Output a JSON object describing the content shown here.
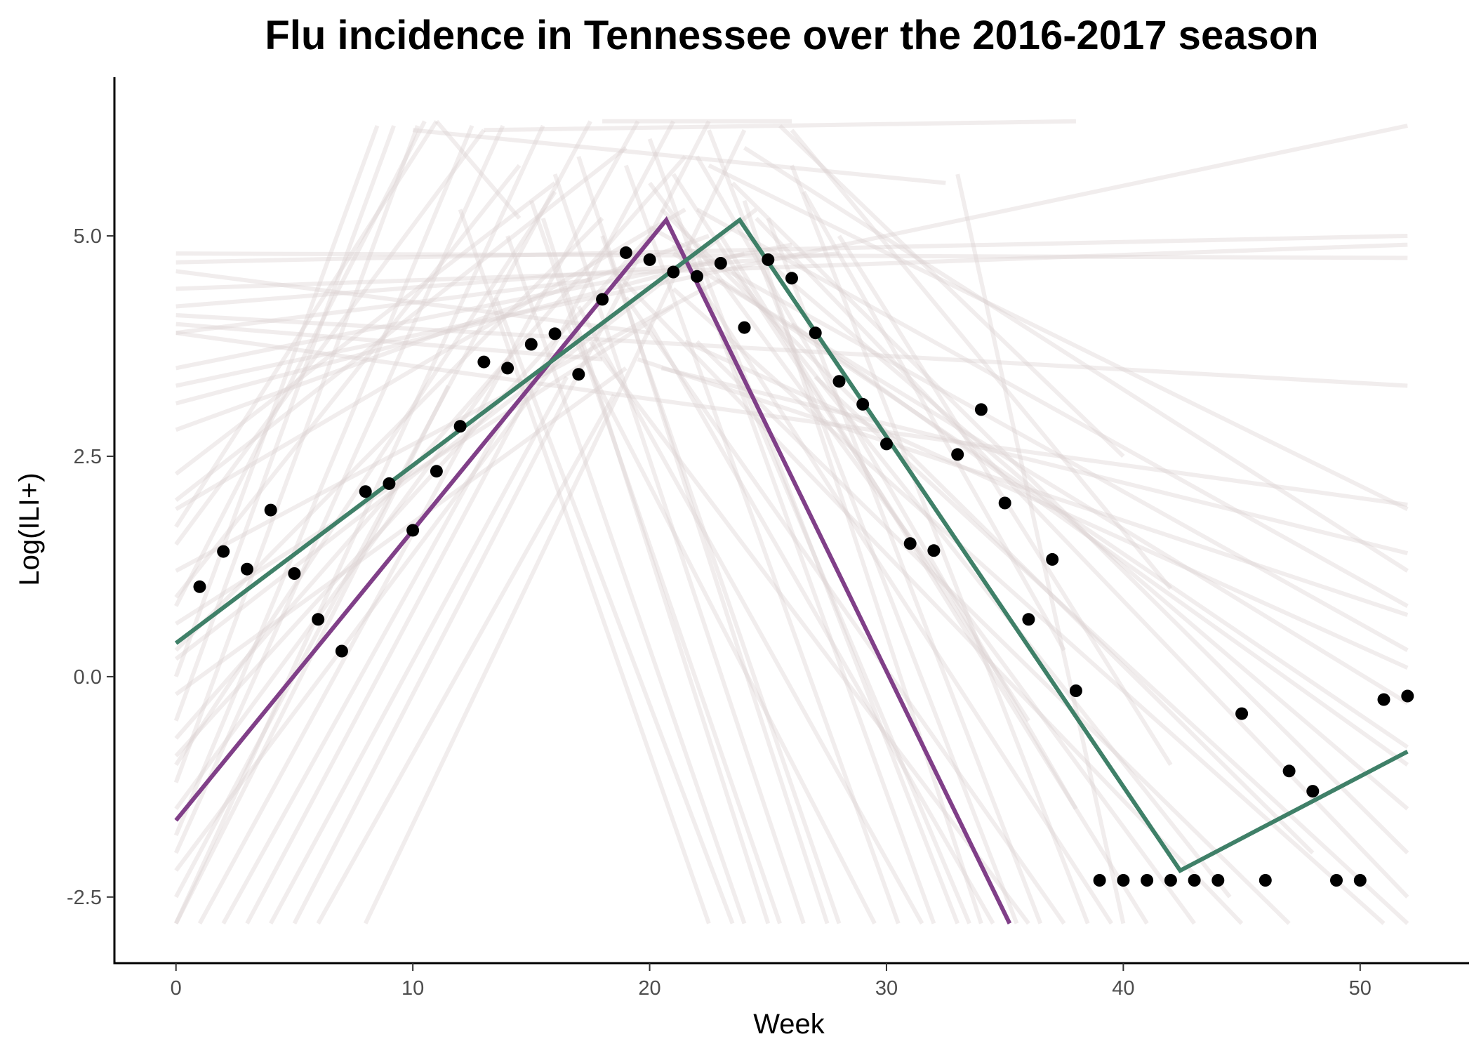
{
  "chart_data": {
    "type": "line",
    "title": "Flu incidence in Tennessee over the 2016-2017 season",
    "xlabel": "Week",
    "ylabel": "Log(ILI+)",
    "xlim": [
      -2.6,
      54.6
    ],
    "ylim": [
      -3.25,
      6.8
    ],
    "x_ticks": [
      0,
      10,
      20,
      30,
      40,
      50
    ],
    "y_ticks": [
      -2.5,
      0.0,
      2.5,
      5.0
    ],
    "x_tick_labels": [
      "0",
      "10",
      "20",
      "30",
      "40",
      "50"
    ],
    "y_tick_labels": [
      "-2.5",
      "0.0",
      "2.5",
      "5.0"
    ],
    "grid": false,
    "colors": {
      "observed": "#000000",
      "fit_purple": "#803f88",
      "fit_green": "#3f8068",
      "samples": "#d9d0d0"
    },
    "observed_points": [
      {
        "x": 1,
        "y": 1.02
      },
      {
        "x": 2,
        "y": 1.42
      },
      {
        "x": 3,
        "y": 1.22
      },
      {
        "x": 4,
        "y": 1.89
      },
      {
        "x": 5,
        "y": 1.17
      },
      {
        "x": 6,
        "y": 0.65
      },
      {
        "x": 7,
        "y": 0.29
      },
      {
        "x": 8,
        "y": 2.1
      },
      {
        "x": 9,
        "y": 2.19
      },
      {
        "x": 10,
        "y": 1.66
      },
      {
        "x": 11,
        "y": 2.33
      },
      {
        "x": 12,
        "y": 2.84
      },
      {
        "x": 13,
        "y": 3.57
      },
      {
        "x": 14,
        "y": 3.5
      },
      {
        "x": 15,
        "y": 3.77
      },
      {
        "x": 16,
        "y": 3.89
      },
      {
        "x": 17,
        "y": 3.43
      },
      {
        "x": 18,
        "y": 4.28
      },
      {
        "x": 19,
        "y": 4.81
      },
      {
        "x": 20,
        "y": 4.73
      },
      {
        "x": 21,
        "y": 4.59
      },
      {
        "x": 22,
        "y": 4.54
      },
      {
        "x": 23,
        "y": 4.69
      },
      {
        "x": 24,
        "y": 3.96
      },
      {
        "x": 25,
        "y": 4.73
      },
      {
        "x": 26,
        "y": 4.52
      },
      {
        "x": 27,
        "y": 3.9
      },
      {
        "x": 28,
        "y": 3.35
      },
      {
        "x": 29,
        "y": 3.09
      },
      {
        "x": 30,
        "y": 2.64
      },
      {
        "x": 31,
        "y": 1.51
      },
      {
        "x": 32,
        "y": 1.43
      },
      {
        "x": 33,
        "y": 2.52
      },
      {
        "x": 34,
        "y": 3.03
      },
      {
        "x": 35,
        "y": 1.97
      },
      {
        "x": 36,
        "y": 0.65
      },
      {
        "x": 37,
        "y": 1.33
      },
      {
        "x": 38,
        "y": -0.16
      },
      {
        "x": 39,
        "y": -2.31
      },
      {
        "x": 40,
        "y": -2.31
      },
      {
        "x": 41,
        "y": -2.31
      },
      {
        "x": 42,
        "y": -2.31
      },
      {
        "x": 43,
        "y": -2.31
      },
      {
        "x": 44,
        "y": -2.31
      },
      {
        "x": 45,
        "y": -0.42
      },
      {
        "x": 46,
        "y": -2.31
      },
      {
        "x": 47,
        "y": -1.07
      },
      {
        "x": 48,
        "y": -1.3
      },
      {
        "x": 49,
        "y": -2.31
      },
      {
        "x": 50,
        "y": -2.31
      },
      {
        "x": 51,
        "y": -0.26
      },
      {
        "x": 52,
        "y": -0.22
      }
    ],
    "fits": [
      {
        "color": "#803f88",
        "points": [
          [
            0,
            -1.63
          ],
          [
            20.7,
            5.18
          ],
          [
            35.2,
            -2.8
          ]
        ]
      },
      {
        "color": "#3f8068",
        "points": [
          [
            0,
            0.38
          ],
          [
            23.8,
            5.18
          ],
          [
            42.4,
            -2.2
          ],
          [
            52,
            -0.85
          ]
        ]
      }
    ],
    "sample_lines": [
      [
        [
          0,
          0.0
        ],
        [
          8.5,
          6.25
        ]
      ],
      [
        [
          0,
          -0.5
        ],
        [
          9.2,
          6.25
        ]
      ],
      [
        [
          0,
          0.8
        ],
        [
          10.5,
          6.3
        ]
      ],
      [
        [
          0,
          -1.2
        ],
        [
          10.2,
          6.25
        ]
      ],
      [
        [
          0,
          -1.8
        ],
        [
          12.5,
          6.25
        ]
      ],
      [
        [
          0,
          -2.0
        ],
        [
          13.8,
          6.25
        ]
      ],
      [
        [
          0,
          -2.8
        ],
        [
          15.5,
          6.25
        ]
      ],
      [
        [
          0,
          -2.5
        ],
        [
          17.5,
          6.3
        ]
      ],
      [
        [
          0,
          1.5
        ],
        [
          13.0,
          6.2
        ]
      ],
      [
        [
          1,
          -2.8
        ],
        [
          19.5,
          6.3
        ]
      ],
      [
        [
          3,
          -2.8
        ],
        [
          21.0,
          6.3
        ]
      ],
      [
        [
          5,
          -2.8
        ],
        [
          22.5,
          6.3
        ]
      ],
      [
        [
          8,
          -2.8
        ],
        [
          24.0,
          6.2
        ]
      ],
      [
        [
          0,
          2.3
        ],
        [
          16.0,
          5.6
        ]
      ],
      [
        [
          0,
          0.3
        ],
        [
          18.0,
          5.2
        ]
      ],
      [
        [
          0,
          -0.9
        ],
        [
          20.0,
          5.0
        ]
      ],
      [
        [
          0,
          1.9
        ],
        [
          21.5,
          5.3
        ]
      ],
      [
        [
          0,
          2.8
        ],
        [
          22.5,
          5.0
        ]
      ],
      [
        [
          0,
          3.1
        ],
        [
          24.0,
          4.8
        ]
      ],
      [
        [
          0,
          3.5
        ],
        [
          26.0,
          4.9
        ]
      ],
      [
        [
          0,
          4.2
        ],
        [
          28.0,
          4.8
        ]
      ],
      [
        [
          0,
          4.8
        ],
        [
          52,
          4.75
        ]
      ],
      [
        [
          0,
          4.7
        ],
        [
          52,
          5.0
        ]
      ],
      [
        [
          0,
          4.4
        ],
        [
          52,
          4.9
        ]
      ],
      [
        [
          0,
          4.1
        ],
        [
          52,
          3.3
        ]
      ],
      [
        [
          0,
          3.9
        ],
        [
          52,
          1.95
        ]
      ],
      [
        [
          0,
          3.3
        ],
        [
          52,
          6.25
        ]
      ],
      [
        [
          22.5,
          5.8
        ],
        [
          52,
          1.9
        ]
      ],
      [
        [
          24.0,
          6.0
        ],
        [
          52,
          1.2
        ]
      ],
      [
        [
          22.0,
          5.3
        ],
        [
          52,
          0.8
        ]
      ],
      [
        [
          20.0,
          5.1
        ],
        [
          52,
          0.3
        ]
      ],
      [
        [
          21.0,
          4.8
        ],
        [
          52,
          -0.3
        ]
      ],
      [
        [
          23.0,
          4.5
        ],
        [
          52,
          -0.8
        ]
      ],
      [
        [
          25.0,
          4.7
        ],
        [
          52,
          -1.5
        ]
      ],
      [
        [
          23.5,
          5.6
        ],
        [
          52,
          -2.0
        ]
      ],
      [
        [
          24.5,
          5.2
        ],
        [
          52,
          -2.5
        ]
      ],
      [
        [
          21.0,
          4.4
        ],
        [
          51,
          -2.8
        ]
      ],
      [
        [
          22.0,
          3.8
        ],
        [
          47,
          -2.8
        ]
      ],
      [
        [
          18.5,
          4.6
        ],
        [
          45,
          -2.8
        ]
      ],
      [
        [
          20.0,
          5.6
        ],
        [
          43,
          -2.8
        ]
      ],
      [
        [
          23.0,
          5.0
        ],
        [
          41,
          -2.8
        ]
      ],
      [
        [
          21.0,
          4.9
        ],
        [
          39.5,
          -2.8
        ]
      ],
      [
        [
          19.0,
          4.3
        ],
        [
          37.5,
          -2.8
        ]
      ],
      [
        [
          17.5,
          3.8
        ],
        [
          36.0,
          -2.8
        ]
      ],
      [
        [
          20.0,
          4.0
        ],
        [
          34.5,
          -2.8
        ]
      ],
      [
        [
          22.0,
          4.8
        ],
        [
          33.0,
          -2.8
        ]
      ],
      [
        [
          17.0,
          4.2
        ],
        [
          31.5,
          -2.8
        ]
      ],
      [
        [
          16.5,
          4.0
        ],
        [
          29.5,
          -2.8
        ]
      ],
      [
        [
          18.0,
          5.0
        ],
        [
          28.0,
          -2.8
        ]
      ],
      [
        [
          16.0,
          5.7
        ],
        [
          26.5,
          -2.8
        ]
      ],
      [
        [
          15.0,
          5.4
        ],
        [
          25.5,
          -2.8
        ]
      ],
      [
        [
          14.0,
          5.0
        ],
        [
          24.0,
          -2.8
        ]
      ],
      [
        [
          12.0,
          5.3
        ],
        [
          22.5,
          -2.8
        ]
      ],
      [
        [
          11.0,
          6.3
        ],
        [
          14.5,
          5.2
        ]
      ],
      [
        [
          10.0,
          6.2
        ],
        [
          32.5,
          5.6
        ]
      ],
      [
        [
          18.0,
          6.3
        ],
        [
          26.0,
          6.3
        ]
      ],
      [
        [
          13.0,
          6.2
        ],
        [
          38.0,
          6.3
        ]
      ],
      [
        [
          25.5,
          6.25
        ],
        [
          40.0,
          2.5
        ]
      ],
      [
        [
          26.0,
          6.2
        ],
        [
          42.0,
          1.0
        ]
      ],
      [
        [
          33.0,
          5.7
        ],
        [
          40.0,
          -2.8
        ]
      ],
      [
        [
          21.0,
          5.7
        ],
        [
          36.0,
          -0.5
        ]
      ],
      [
        [
          22.0,
          5.9
        ],
        [
          38.0,
          -1.5
        ]
      ],
      [
        [
          26.5,
          5.5
        ],
        [
          37.5,
          0.3
        ]
      ],
      [
        [
          28.0,
          5.0
        ],
        [
          42.0,
          -1.0
        ]
      ],
      [
        [
          20.5,
          5.3
        ],
        [
          48.0,
          -2.0
        ]
      ],
      [
        [
          23.5,
          4.6
        ],
        [
          44.5,
          -2.5
        ]
      ],
      [
        [
          21.5,
          3.8
        ],
        [
          52,
          0.1
        ]
      ],
      [
        [
          19.5,
          3.6
        ],
        [
          52,
          0.7
        ]
      ],
      [
        [
          20.5,
          3.5
        ],
        [
          52,
          1.4
        ]
      ],
      [
        [
          26.0,
          4.0
        ],
        [
          52,
          -1.0
        ]
      ],
      [
        [
          27.0,
          3.4
        ],
        [
          52,
          -2.8
        ]
      ],
      [
        [
          0,
          -1.5
        ],
        [
          14.0,
          3.6
        ]
      ],
      [
        [
          0,
          -2.2
        ],
        [
          17.0,
          3.9
        ]
      ],
      [
        [
          0,
          -0.2
        ],
        [
          19.0,
          3.5
        ]
      ],
      [
        [
          0,
          0.6
        ],
        [
          21.0,
          4.2
        ]
      ],
      [
        [
          0,
          1.2
        ],
        [
          23.0,
          4.5
        ]
      ],
      [
        [
          0,
          -2.8
        ],
        [
          11.5,
          3.3
        ]
      ],
      [
        [
          2,
          -2.8
        ],
        [
          14.0,
          3.0
        ]
      ],
      [
        [
          4,
          -2.8
        ],
        [
          16.5,
          3.4
        ]
      ],
      [
        [
          6,
          -2.8
        ],
        [
          18.5,
          3.2
        ]
      ],
      [
        [
          0,
          1.7
        ],
        [
          11.0,
          6.3
        ]
      ],
      [
        [
          0,
          0.9
        ],
        [
          14.5,
          5.8
        ]
      ],
      [
        [
          0,
          -1.0
        ],
        [
          16.0,
          5.5
        ]
      ],
      [
        [
          0,
          2.0
        ],
        [
          19.0,
          6.0
        ]
      ],
      [
        [
          0,
          -0.7
        ],
        [
          21.5,
          5.9
        ]
      ],
      [
        [
          0,
          0.2
        ],
        [
          24.5,
          5.3
        ]
      ],
      [
        [
          0,
          3.9
        ],
        [
          17.5,
          4.5
        ]
      ],
      [
        [
          0,
          4.6
        ],
        [
          20.0,
          3.9
        ]
      ],
      [
        [
          0,
          4.0
        ],
        [
          18.0,
          3.6
        ]
      ],
      [
        [
          24.0,
          5.4
        ],
        [
          34.0,
          -2.8
        ]
      ],
      [
        [
          25.0,
          5.2
        ],
        [
          36.5,
          -2.8
        ]
      ],
      [
        [
          23.0,
          3.9
        ],
        [
          33.5,
          -2.8
        ]
      ],
      [
        [
          26.0,
          5.8
        ],
        [
          38.5,
          -2.8
        ]
      ],
      [
        [
          19.0,
          5.8
        ],
        [
          30.5,
          -2.8
        ]
      ],
      [
        [
          20.0,
          6.1
        ],
        [
          32.0,
          -2.8
        ]
      ],
      [
        [
          22.5,
          6.2
        ],
        [
          35.5,
          -2.8
        ]
      ],
      [
        [
          17.0,
          5.9
        ],
        [
          27.5,
          -2.8
        ]
      ],
      [
        [
          15.5,
          5.2
        ],
        [
          25.0,
          -2.8
        ]
      ],
      [
        [
          13.5,
          4.3
        ],
        [
          23.5,
          -2.8
        ]
      ]
    ]
  }
}
